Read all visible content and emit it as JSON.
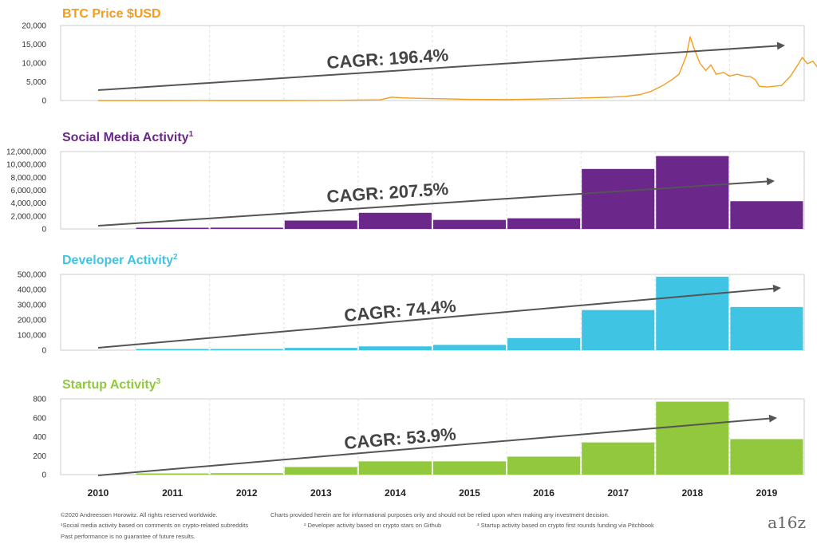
{
  "chart_data": [
    {
      "type": "line",
      "title": "BTC Price $USD",
      "title_sup": "",
      "color": "#f39c1f",
      "ylim": [
        0,
        20000
      ],
      "yticks": [
        "20,000",
        "15,000",
        "10,000",
        "5,000",
        "0"
      ],
      "x_start": 2010,
      "x_end": 2019.7,
      "points": [
        [
          2010.0,
          0
        ],
        [
          2010.5,
          0
        ],
        [
          2011.0,
          1
        ],
        [
          2011.4,
          15
        ],
        [
          2011.6,
          8
        ],
        [
          2012.0,
          5
        ],
        [
          2012.5,
          8
        ],
        [
          2012.9,
          13
        ],
        [
          2013.2,
          50
        ],
        [
          2013.5,
          100
        ],
        [
          2013.8,
          200
        ],
        [
          2013.95,
          900
        ],
        [
          2014.1,
          700
        ],
        [
          2014.4,
          550
        ],
        [
          2014.7,
          450
        ],
        [
          2015.0,
          300
        ],
        [
          2015.5,
          250
        ],
        [
          2016.0,
          400
        ],
        [
          2016.5,
          650
        ],
        [
          2016.9,
          900
        ],
        [
          2017.1,
          1100
        ],
        [
          2017.3,
          1600
        ],
        [
          2017.45,
          2500
        ],
        [
          2017.6,
          4000
        ],
        [
          2017.72,
          5500
        ],
        [
          2017.82,
          7000
        ],
        [
          2017.92,
          12000
        ],
        [
          2017.97,
          17000
        ],
        [
          2018.02,
          14000
        ],
        [
          2018.1,
          10000
        ],
        [
          2018.18,
          8000
        ],
        [
          2018.25,
          9500
        ],
        [
          2018.32,
          7000
        ],
        [
          2018.42,
          7500
        ],
        [
          2018.5,
          6500
        ],
        [
          2018.6,
          7000
        ],
        [
          2018.7,
          6500
        ],
        [
          2018.78,
          6400
        ],
        [
          2018.85,
          5500
        ],
        [
          2018.9,
          3800
        ],
        [
          2019.0,
          3600
        ],
        [
          2019.2,
          4000
        ],
        [
          2019.32,
          6500
        ],
        [
          2019.42,
          9500
        ],
        [
          2019.48,
          11500
        ],
        [
          2019.55,
          9800
        ],
        [
          2019.62,
          10500
        ],
        [
          2019.7,
          8500
        ],
        [
          2019.78,
          8800
        ],
        [
          2019.85,
          7500
        ],
        [
          2019.92,
          7200
        ],
        [
          2019.98,
          6300
        ]
      ],
      "cagr_label": "CAGR: 196.4%"
    },
    {
      "type": "bar",
      "title": "Social Media Activity",
      "title_sup": "1",
      "color": "#6b2789",
      "ylim": [
        0,
        12000000
      ],
      "yticks": [
        "12,000,000",
        "10,000,000",
        "8,000,000",
        "6,000,000",
        "4,000,000",
        "2,000,000",
        "0"
      ],
      "categories": [
        "2010",
        "2011",
        "2012",
        "2013",
        "2014",
        "2015",
        "2016",
        "2017",
        "2018",
        "2019"
      ],
      "values": [
        0,
        100000,
        200000,
        1300000,
        2500000,
        1400000,
        1650000,
        9300000,
        11300000,
        4300000
      ],
      "cagr_label": "CAGR: 207.5%"
    },
    {
      "type": "bar",
      "title": "Developer Activity",
      "title_sup": "2",
      "color": "#3fc4e3",
      "ylim": [
        0,
        500000
      ],
      "yticks": [
        "500,000",
        "400,000",
        "300,000",
        "200,000",
        "100,000",
        "0"
      ],
      "categories": [
        "2010",
        "2011",
        "2012",
        "2013",
        "2014",
        "2015",
        "2016",
        "2017",
        "2018",
        "2019"
      ],
      "values": [
        0,
        1500,
        5000,
        15000,
        25000,
        35000,
        80000,
        265000,
        485000,
        285000
      ],
      "cagr_label": "CAGR: 74.4%"
    },
    {
      "type": "bar",
      "title": "Startup Activity",
      "title_sup": "3",
      "color": "#92c83e",
      "ylim": [
        0,
        800
      ],
      "yticks": [
        "800",
        "600",
        "400",
        "200",
        "0"
      ],
      "categories": [
        "2010",
        "2011",
        "2012",
        "2013",
        "2014",
        "2015",
        "2016",
        "2017",
        "2018",
        "2019"
      ],
      "values": [
        0,
        10,
        15,
        80,
        140,
        140,
        190,
        340,
        770,
        375
      ],
      "cagr_label": "CAGR: 53.9%"
    }
  ],
  "x_labels": [
    "2010",
    "2011",
    "2012",
    "2013",
    "2014",
    "2015",
    "2016",
    "2017",
    "2018",
    "2019"
  ],
  "footnotes": {
    "copyright": "©2020 Andreessen Horowitz. All rights reserved worldwide.",
    "disclaimer": "Charts provided herein are for informational purposes only and should not be relied upon when making any investment decision.",
    "note1": "¹Social media activity based on comments on crypto-related subreddits",
    "note2": "² Developer activity based on crypto stars on Github",
    "note3": "³ Startup activity based on crypto first rounds funding via Pitchbook",
    "past": "Past performance is no guarantee of future results."
  },
  "logo": "a16z"
}
